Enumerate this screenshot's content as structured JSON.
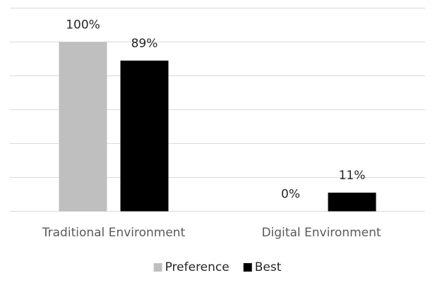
{
  "chart_data": {
    "type": "bar",
    "categories": [
      "Traditional Environment",
      "Digital Environment"
    ],
    "series": [
      {
        "name": "Preference",
        "values": [
          100,
          0
        ],
        "labels": [
          "100%",
          "0%"
        ],
        "color": "#bfbfbf"
      },
      {
        "name": "Best",
        "values": [
          89,
          11
        ],
        "labels": [
          "89%",
          "11%"
        ],
        "color": "#000000"
      }
    ],
    "ylim": [
      0,
      120
    ],
    "grid": true,
    "legend": "bottom",
    "gridline_color": "#d9d9d9",
    "text_color": "#262626"
  }
}
